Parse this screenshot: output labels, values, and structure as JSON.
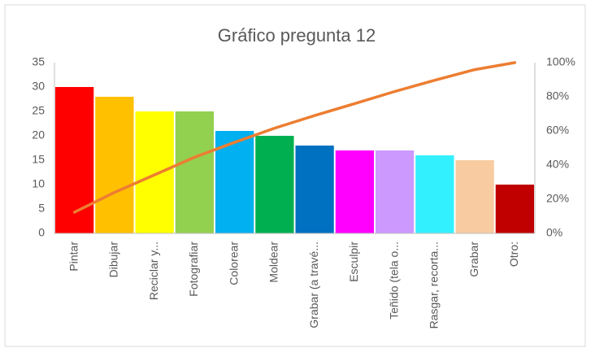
{
  "chart_data": {
    "type": "pareto",
    "title": "Gráfico pregunta 12",
    "categories": [
      "Pintar",
      "Dibujar",
      "Reciclar y...",
      "Fotografiar",
      "Colorear",
      "Moldear",
      "Grabar (a travé...",
      "Esculpir",
      "Teñido (tela o...",
      "Rasgar, recorta...",
      "Grabar",
      "Otro:"
    ],
    "series": [
      {
        "type": "bar",
        "values": [
          30,
          28,
          25,
          25,
          21,
          20,
          18,
          17,
          17,
          16,
          15,
          10
        ],
        "colors": [
          "#ff0000",
          "#ffc000",
          "#ffff00",
          "#92d050",
          "#00b0f0",
          "#00b050",
          "#0070c0",
          "#ff00ff",
          "#cc99ff",
          "#33f0ff",
          "#f8cba0",
          "#c00000"
        ]
      },
      {
        "type": "line",
        "axis": "y2",
        "color": "#ed7d31",
        "values": [
          12.4,
          24,
          34.3,
          44.6,
          53.3,
          61.6,
          69,
          76,
          83.1,
          89.7,
          95.9,
          100
        ]
      }
    ],
    "ylim": [
      0,
      35
    ],
    "yticks": [
      0,
      5,
      10,
      15,
      20,
      25,
      30,
      35
    ],
    "y2lim": [
      0,
      100
    ],
    "y2ticks": [
      {
        "value": 0,
        "label": "0%"
      },
      {
        "value": 20,
        "label": "20%"
      },
      {
        "value": 40,
        "label": "40%"
      },
      {
        "value": 60,
        "label": "60%"
      },
      {
        "value": 80,
        "label": "80%"
      },
      {
        "value": 100,
        "label": "100%"
      }
    ],
    "grid": false
  }
}
